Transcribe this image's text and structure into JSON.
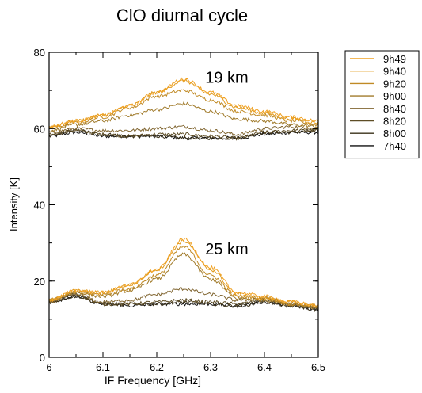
{
  "chart_data": {
    "type": "line",
    "title": "ClO diurnal cycle",
    "xlabel": "IF Frequency [GHz]",
    "ylabel": "Intensity [K]",
    "xlim": [
      6.0,
      6.5
    ],
    "ylim": [
      0,
      80
    ],
    "x_ticks": [
      6,
      6.1,
      6.2,
      6.3,
      6.4,
      6.5
    ],
    "x_tick_labels": [
      "6",
      "6.1",
      "6.2",
      "6.3",
      "6.4",
      "6.5"
    ],
    "y_ticks": [
      0,
      20,
      40,
      60,
      80
    ],
    "y_tick_labels": [
      "0",
      "20",
      "40",
      "60",
      "80"
    ],
    "grid": false,
    "legend_position": "outside-right-top",
    "annotations": [
      {
        "text": "19 km",
        "x": 6.29,
        "y": 72
      },
      {
        "text": "25 km",
        "x": 6.29,
        "y": 27
      }
    ],
    "groups": [
      {
        "name": "19 km",
        "x": [
          6.0,
          6.05,
          6.1,
          6.15,
          6.2,
          6.25,
          6.3,
          6.35,
          6.4,
          6.45,
          6.5
        ],
        "series": [
          {
            "name": "9h49",
            "color": "#f0a020",
            "values": [
              60.5,
              62,
              63.5,
              66,
              69.5,
              73,
              69.5,
              66,
              64.5,
              63,
              62
            ]
          },
          {
            "name": "9h40",
            "color": "#e09b1f",
            "values": [
              60.5,
              62,
              63.5,
              66,
              69.5,
              72.5,
              69,
              65.5,
              64,
              62.5,
              61.5
            ]
          },
          {
            "name": "9h20",
            "color": "#c08a25",
            "values": [
              60,
              61.5,
              63,
              65.5,
              68.5,
              70,
              67.5,
              64.5,
              63.5,
              62,
              61
            ]
          },
          {
            "name": "9h00",
            "color": "#a07a2a",
            "values": [
              59.5,
              61,
              62,
              63.5,
              65,
              66.5,
              64.5,
              62.5,
              62,
              61,
              60.5
            ]
          },
          {
            "name": "8h40",
            "color": "#806530",
            "values": [
              59,
              60,
              59.5,
              59.5,
              60,
              60.5,
              59.5,
              58.5,
              60,
              60.5,
              60
            ]
          },
          {
            "name": "8h20",
            "color": "#5e4d25",
            "values": [
              58.5,
              59.5,
              58.5,
              58,
              58.5,
              58.5,
              58,
              57.5,
              59,
              59.5,
              59.5
            ]
          },
          {
            "name": "8h00",
            "color": "#3a3018",
            "values": [
              58,
              59.5,
              58.5,
              58,
              58,
              57.5,
              57.5,
              57.5,
              59,
              59,
              59.5
            ]
          },
          {
            "name": "7h40",
            "color": "#111111",
            "values": [
              58,
              59,
              58,
              58,
              58,
              57.5,
              57.5,
              57.5,
              58.5,
              59,
              59
            ]
          }
        ]
      },
      {
        "name": "25 km",
        "x": [
          6.0,
          6.05,
          6.1,
          6.15,
          6.2,
          6.25,
          6.3,
          6.35,
          6.4,
          6.45,
          6.5
        ],
        "series": [
          {
            "name": "9h49",
            "color": "#f0a020",
            "values": [
              15,
              17.5,
              17,
              19,
              23,
              31,
              23.5,
              17,
              16,
              14.5,
              13.5
            ]
          },
          {
            "name": "9h40",
            "color": "#e09b1f",
            "values": [
              15,
              17.5,
              17,
              19,
              23,
              30.5,
              23,
              16.5,
              15.5,
              14.5,
              13.5
            ]
          },
          {
            "name": "9h20",
            "color": "#c08a25",
            "values": [
              15,
              17,
              16.5,
              18,
              21.5,
              29,
              21.5,
              16,
              15.5,
              14,
              13.5
            ]
          },
          {
            "name": "9h00",
            "color": "#a07a2a",
            "values": [
              15,
              17,
              16,
              17.5,
              20.5,
              27,
              20.5,
              15.5,
              15,
              14,
              13
            ]
          },
          {
            "name": "8h40",
            "color": "#806530",
            "values": [
              14.5,
              16.5,
              14.5,
              15,
              16.5,
              18,
              16.5,
              15,
              15.5,
              14,
              13
            ]
          },
          {
            "name": "8h20",
            "color": "#5e4d25",
            "values": [
              14.5,
              16.5,
              14,
              14,
              14.5,
              15,
              14.5,
              14,
              15,
              13.5,
              13
            ]
          },
          {
            "name": "8h00",
            "color": "#3a3018",
            "values": [
              14.5,
              16,
              14,
              14,
              14,
              14.5,
              14,
              13.5,
              14.5,
              13.5,
              12.5
            ]
          },
          {
            "name": "7h40",
            "color": "#111111",
            "values": [
              14.5,
              16,
              14,
              13.5,
              14,
              14,
              14,
              13.5,
              14.5,
              13.5,
              12.5
            ]
          }
        ]
      }
    ]
  }
}
